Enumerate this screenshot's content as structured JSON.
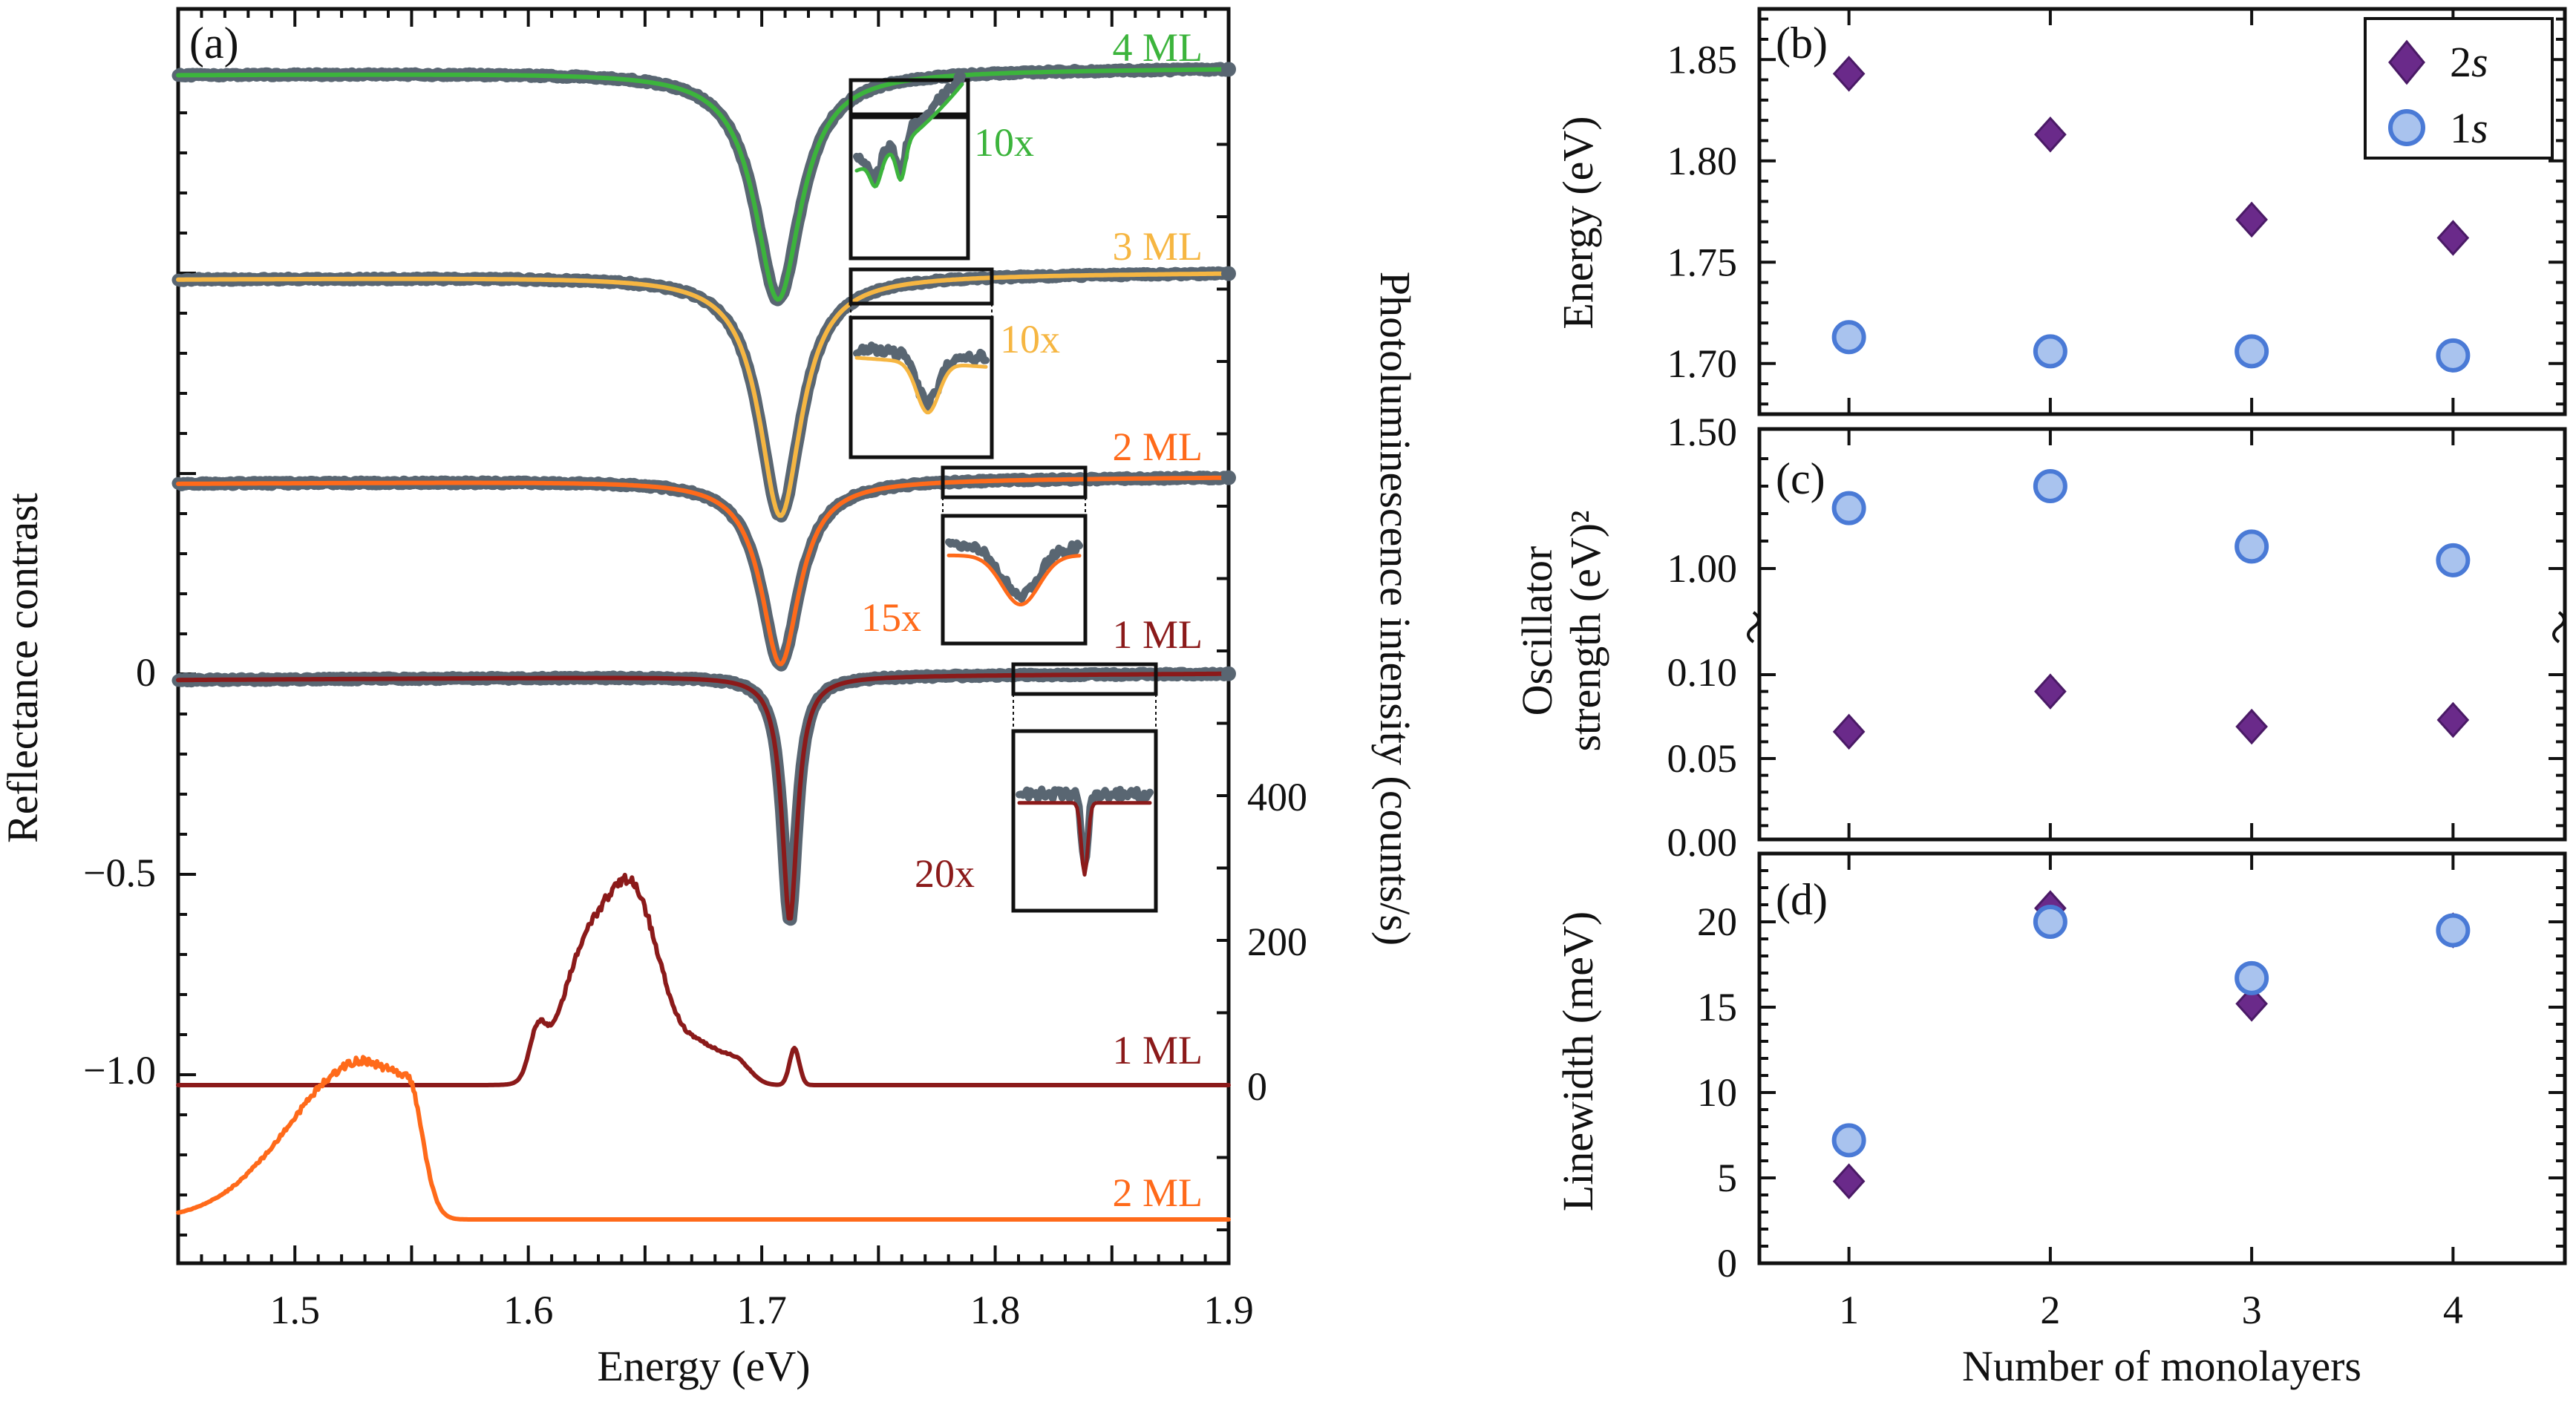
{
  "colors": {
    "measured": "#596672",
    "ml1": "#8b1a1a",
    "ml2": "#ff6a1a",
    "ml3": "#f6b642",
    "ml4": "#3cb43c",
    "s2": "#6a2a8a",
    "s1": "#4a7ad6",
    "s1_fill": "#a9c3ee"
  },
  "chart_data": [
    {
      "panel": "(a)",
      "type": "line",
      "xlabel": "Energy (eV)",
      "ylabel_left": "Reflectance contrast",
      "ylabel_right": "Photoluminescence intensity (counts/s)",
      "xlim": [
        1.45,
        1.9
      ],
      "x_ticks": [
        "1.5",
        "1.6",
        "1.7",
        "1.8",
        "1.9"
      ],
      "y_left_ticks": [
        "0",
        "−0.5",
        "−1.0"
      ],
      "y_right_ticks": [
        "0",
        "200",
        "400"
      ],
      "reflectance_series": [
        {
          "name": "4 ML",
          "offset": 1.51,
          "dip_center": 1.707,
          "dip_depth": 0.57,
          "dip_width": 0.012,
          "color_key": "ml4"
        },
        {
          "name": "3 ML",
          "offset": 1.0,
          "dip_center": 1.708,
          "dip_depth": 0.6,
          "dip_width": 0.011,
          "color_key": "ml3"
        },
        {
          "name": "2 ML",
          "offset": 0.49,
          "dip_center": 1.708,
          "dip_depth": 0.46,
          "dip_width": 0.01,
          "color_key": "ml2"
        },
        {
          "name": "1 ML",
          "offset": 0.0,
          "dip_center": 1.712,
          "dip_depth": 0.61,
          "dip_width": 0.004,
          "color_key": "ml1"
        }
      ],
      "inset_magnification": [
        "10x",
        "10x",
        "15x",
        "20x"
      ],
      "pl_series": [
        {
          "name": "1 ML",
          "peak_energy": 1.644,
          "peak_counts": 270,
          "color_key": "ml1"
        },
        {
          "name": "2 ML",
          "peak_energy": 1.53,
          "peak_counts": 220,
          "color_key": "ml2"
        }
      ]
    },
    {
      "panel": "(b)",
      "type": "scatter",
      "ylabel": "Energy (eV)",
      "ylim": [
        1.675,
        1.875
      ],
      "y_ticks": [
        "1.70",
        "1.75",
        "1.80",
        "1.85"
      ],
      "x": [
        1,
        2,
        3,
        4
      ],
      "series": [
        {
          "name": "2s",
          "values": [
            1.843,
            1.813,
            1.771,
            1.762
          ]
        },
        {
          "name": "1s",
          "values": [
            1.713,
            1.706,
            1.706,
            1.704
          ]
        }
      ]
    },
    {
      "panel": "(c)",
      "type": "scatter",
      "ylabel": [
        "Oscillator",
        "strength (eV)²"
      ],
      "y_ticks_upper": [
        "1.00",
        "1.50"
      ],
      "y_ticks_lower": [
        "0.00",
        "0.05",
        "0.10"
      ],
      "axis_break": true,
      "x": [
        1,
        2,
        3,
        4
      ],
      "series": [
        {
          "name": "1s",
          "values": [
            1.22,
            1.3,
            1.08,
            1.03
          ]
        },
        {
          "name": "2s",
          "values": [
            0.066,
            0.09,
            0.069,
            0.073
          ]
        }
      ]
    },
    {
      "panel": "(d)",
      "type": "scatter",
      "ylabel": "Linewidth (meV)",
      "xlabel": "Number of monolayers",
      "ylim": [
        0,
        24
      ],
      "y_ticks": [
        "0",
        "5",
        "10",
        "15",
        "20"
      ],
      "x_ticks": [
        "1",
        "2",
        "3",
        "4"
      ],
      "x": [
        1,
        2,
        3,
        4
      ],
      "series": [
        {
          "name": "2s",
          "values": [
            4.8,
            20.8,
            15.2,
            19.5
          ]
        },
        {
          "name": "1s",
          "values": [
            7.2,
            20.0,
            16.7,
            19.5
          ]
        }
      ]
    }
  ],
  "legend": {
    "s2_num": "2",
    "s2_sub": "s",
    "s1_num": "1",
    "s1_sub": "s"
  }
}
